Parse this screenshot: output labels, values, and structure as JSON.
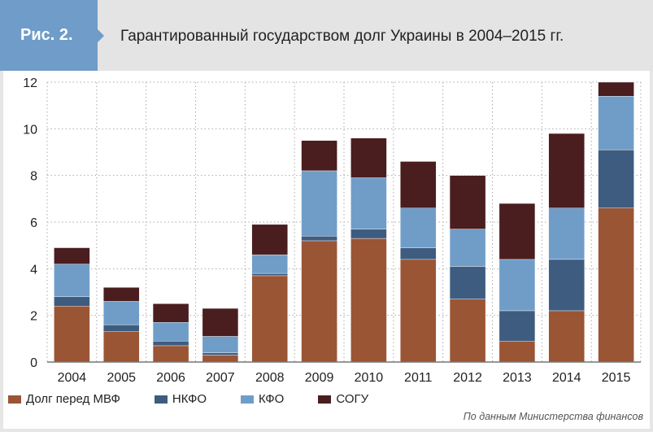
{
  "header": {
    "figure_label": "Рис. 2.",
    "title": "Гарантированный государством долг Украины в 2004–2015 гг."
  },
  "source": "По данным Министерства финансов",
  "chart_data": {
    "type": "bar",
    "stacked": true,
    "title": "Гарантированный государством долг Украины в 2004–2015 гг.",
    "xlabel": "",
    "ylabel": "",
    "ylim": [
      0,
      12
    ],
    "yticks": [
      0,
      2,
      4,
      6,
      8,
      10,
      12
    ],
    "grid": true,
    "legend_position": "bottom-left",
    "categories": [
      "2004",
      "2005",
      "2006",
      "2007",
      "2008",
      "2009",
      "2010",
      "2011",
      "2012",
      "2013",
      "2014",
      "2015"
    ],
    "series": [
      {
        "name": "Долг перед МВФ",
        "color": "#9a5535",
        "values": [
          2.4,
          1.3,
          0.7,
          0.3,
          3.7,
          5.2,
          5.3,
          4.4,
          2.7,
          0.9,
          2.2,
          6.6
        ]
      },
      {
        "name": "НКФО",
        "color": "#3e5c80",
        "values": [
          0.4,
          0.3,
          0.2,
          0.1,
          0.1,
          0.2,
          0.4,
          0.5,
          1.4,
          1.3,
          2.2,
          2.5
        ]
      },
      {
        "name": "КФО",
        "color": "#6f9dc8",
        "values": [
          1.4,
          1.0,
          0.8,
          0.7,
          0.8,
          2.8,
          2.2,
          1.7,
          1.6,
          2.2,
          2.2,
          2.3
        ]
      },
      {
        "name": "СОГУ",
        "color": "#4a1d1f",
        "values": [
          0.7,
          0.6,
          0.8,
          1.2,
          1.3,
          1.3,
          1.7,
          2.0,
          2.3,
          2.4,
          3.2,
          0.6
        ]
      }
    ]
  }
}
